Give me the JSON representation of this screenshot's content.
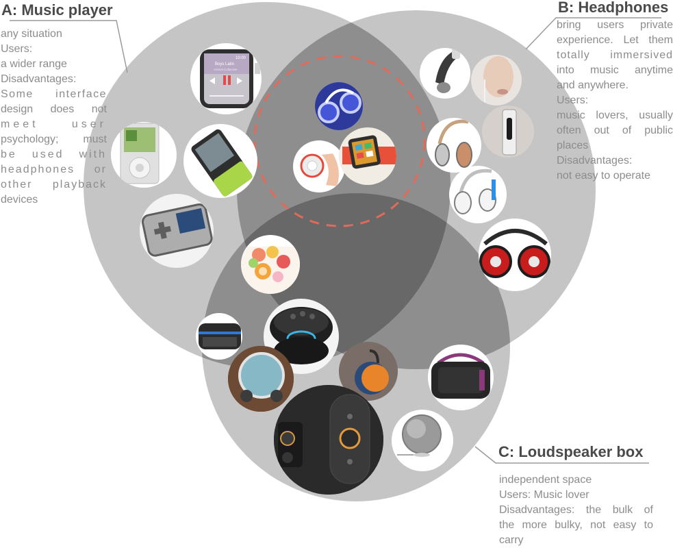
{
  "sets": {
    "a": {
      "title": "A: Music player",
      "lines": [
        "any situation",
        "Users:",
        "a wider range",
        "Disadvantages:",
        "Some interface",
        "design does not",
        "meet user",
        "psychology; must",
        "be used with",
        "headphones or",
        "other playback",
        "devices"
      ]
    },
    "b": {
      "title": "B: Headphones",
      "lines": [
        "bring users private",
        "experience. Let them",
        "totally immersived",
        "into music anytime",
        "and anywhere.",
        "Users:",
        "music lovers, usually",
        "often out of public",
        "places",
        "Disadvantages:",
        "not easy to operate"
      ]
    },
    "c": {
      "title": "C: Loudspeaker box",
      "lines": [
        "independent space",
        "Users: Music lover",
        "Disadvantages: the bulk of",
        "the more bulky, not easy to",
        "carry"
      ]
    }
  },
  "screen": {
    "time": "10:00",
    "song": "Boys Latin",
    "artist": "Animal Collective"
  },
  "colors": {
    "circle": "#c5c5c5",
    "overlap2": "#8e8e8e",
    "overlap3": "#686868",
    "dashed": "#e26a5a",
    "title": "#4a4a4a",
    "text": "#8c8c8c"
  }
}
